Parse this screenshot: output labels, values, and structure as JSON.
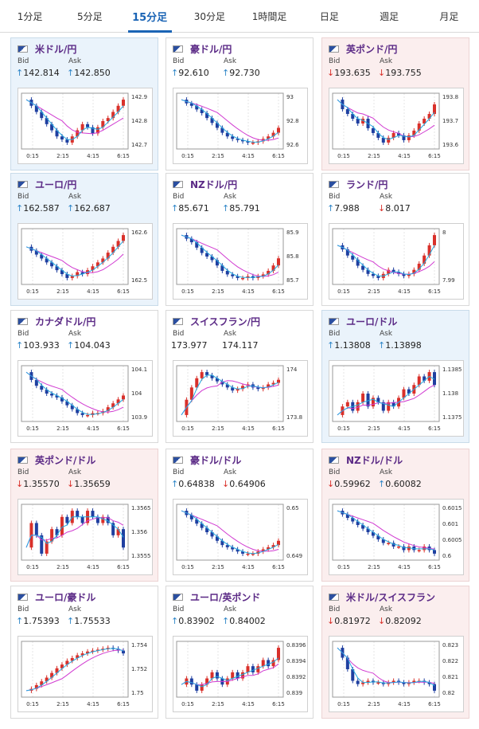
{
  "tabs": [
    "1分足",
    "5分足",
    "15分足",
    "30分足",
    "1時間足",
    "日足",
    "週足",
    "月足"
  ],
  "active_tab": 2,
  "labels": {
    "bid": "Bid",
    "ask": "Ask"
  },
  "colors": {
    "up_arrow": "#2f86c8",
    "down_arrow": "#d9302a",
    "title": "#5b2a86",
    "accent": "#1a64b5",
    "ma_line": "#d13bd1",
    "ma_line2": "#22a9e0"
  },
  "cards": [
    {
      "name": "米ドル/円",
      "flag": "us-jp-flag-icon",
      "bg": "up",
      "bid": {
        "dir": "up",
        "value": "142.814"
      },
      "ask": {
        "dir": "up",
        "value": "142.850"
      },
      "y_ticks": [
        "142.9",
        "142.8",
        "142.7"
      ],
      "x_ticks": [
        "0:15",
        "2:15",
        "4:15",
        "6:15"
      ],
      "series": [
        142.86,
        142.84,
        142.82,
        142.8,
        142.78,
        142.76,
        142.74,
        142.73,
        142.72,
        142.74,
        142.76,
        142.78,
        142.77,
        142.75,
        142.77,
        142.79,
        142.8,
        142.82,
        142.84,
        142.86
      ]
    },
    {
      "name": "豪ドル/円",
      "flag": "au-jp-flag-icon",
      "bg": "flat",
      "bid": {
        "dir": "up",
        "value": "92.610"
      },
      "ask": {
        "dir": "up",
        "value": "92.730"
      },
      "y_ticks": [
        "93",
        "92.8",
        "92.6"
      ],
      "x_ticks": [
        "0:15",
        "2:15",
        "4:15",
        "6:15"
      ],
      "series": [
        92.93,
        92.9,
        92.88,
        92.85,
        92.82,
        92.78,
        92.74,
        92.7,
        92.66,
        92.63,
        92.61,
        92.6,
        92.59,
        92.58,
        92.58,
        92.59,
        92.61,
        92.63,
        92.66,
        92.7
      ]
    },
    {
      "name": "英ポンド/円",
      "flag": "gb-jp-flag-icon",
      "bg": "down",
      "bid": {
        "dir": "down",
        "value": "193.635"
      },
      "ask": {
        "dir": "down",
        "value": "193.755"
      },
      "y_ticks": [
        "193.8",
        "193.7",
        "193.6"
      ],
      "x_ticks": [
        "0:15",
        "2:15",
        "4:15",
        "6:15"
      ],
      "series": [
        193.78,
        193.74,
        193.72,
        193.7,
        193.68,
        193.7,
        193.66,
        193.64,
        193.62,
        193.6,
        193.62,
        193.64,
        193.63,
        193.61,
        193.63,
        193.65,
        193.68,
        193.7,
        193.72,
        193.76
      ]
    },
    {
      "name": "ユーロ/円",
      "flag": "eu-jp-flag-icon",
      "bg": "up",
      "bid": {
        "dir": "up",
        "value": "162.587"
      },
      "ask": {
        "dir": "up",
        "value": "162.687"
      },
      "y_ticks": [
        "162.6",
        "162.5"
      ],
      "x_ticks": [
        "0:15",
        "2:15",
        "4:15",
        "6:15"
      ],
      "series": [
        162.6,
        162.58,
        162.56,
        162.54,
        162.52,
        162.5,
        162.48,
        162.46,
        162.44,
        162.45,
        162.47,
        162.46,
        162.48,
        162.5,
        162.52,
        162.54,
        162.57,
        162.6,
        162.63,
        162.66
      ]
    },
    {
      "name": "NZドル/円",
      "flag": "nz-jp-flag-icon",
      "bg": "flat",
      "bid": {
        "dir": "up",
        "value": "85.671"
      },
      "ask": {
        "dir": "up",
        "value": "85.791"
      },
      "y_ticks": [
        "85.9",
        "85.8",
        "85.7"
      ],
      "x_ticks": [
        "0:15",
        "2:15",
        "4:15",
        "6:15"
      ],
      "series": [
        85.9,
        85.88,
        85.86,
        85.83,
        85.8,
        85.78,
        85.76,
        85.73,
        85.7,
        85.68,
        85.67,
        85.66,
        85.66,
        85.67,
        85.66,
        85.67,
        85.68,
        85.7,
        85.73,
        85.77
      ]
    },
    {
      "name": "ランド/円",
      "flag": "za-jp-flag-icon",
      "bg": "flat",
      "bid": {
        "dir": "up",
        "value": "7.988"
      },
      "ask": {
        "dir": "down",
        "value": "8.017"
      },
      "y_ticks": [
        "8",
        "7.99"
      ],
      "x_ticks": [
        "0:15",
        "2:15",
        "4:15",
        "6:15"
      ],
      "series": [
        8.0,
        7.998,
        7.995,
        7.993,
        7.99,
        7.988,
        7.986,
        7.985,
        7.984,
        7.986,
        7.988,
        7.987,
        7.986,
        7.985,
        7.986,
        7.988,
        7.991,
        7.995,
        8.0,
        8.005
      ]
    },
    {
      "name": "カナダドル/円",
      "flag": "ca-jp-flag-icon",
      "bg": "flat",
      "bid": {
        "dir": "up",
        "value": "103.933"
      },
      "ask": {
        "dir": "up",
        "value": "104.043"
      },
      "y_ticks": [
        "104.1",
        "104",
        "103.9"
      ],
      "x_ticks": [
        "0:15",
        "2:15",
        "4:15",
        "6:15"
      ],
      "series": [
        104.12,
        104.08,
        104.05,
        104.03,
        104.01,
        104.0,
        103.99,
        103.97,
        103.95,
        103.93,
        103.91,
        103.9,
        103.9,
        103.91,
        103.91,
        103.92,
        103.94,
        103.96,
        103.98,
        104.0
      ]
    },
    {
      "name": "スイスフラン/円",
      "flag": "ch-jp-flag-icon",
      "bg": "flat",
      "bid": {
        "dir": "none",
        "value": "173.977"
      },
      "ask": {
        "dir": "none",
        "value": "174.117"
      },
      "y_ticks": [
        "174",
        "173.8"
      ],
      "x_ticks": [
        "0:15",
        "2:15",
        "4:15",
        "6:15"
      ],
      "series": [
        173.8,
        173.9,
        173.98,
        174.04,
        174.08,
        174.06,
        174.04,
        174.02,
        174.0,
        173.98,
        173.96,
        173.97,
        173.99,
        174.0,
        173.98,
        173.97,
        173.98,
        174.0,
        174.01,
        174.03
      ]
    },
    {
      "name": "ユーロ/ドル",
      "flag": "eu-us-flag-icon",
      "bg": "up",
      "bid": {
        "dir": "up",
        "value": "1.13808"
      },
      "ask": {
        "dir": "up",
        "value": "1.13898"
      },
      "y_ticks": [
        "1.1385",
        "1.138",
        "1.1375"
      ],
      "x_ticks": [
        "0:15",
        "2:15",
        "4:15",
        "6:15"
      ],
      "series": [
        1.1378,
        1.138,
        1.1381,
        1.1379,
        1.1381,
        1.1383,
        1.138,
        1.1382,
        1.1381,
        1.1379,
        1.1381,
        1.138,
        1.1382,
        1.1384,
        1.1383,
        1.1385,
        1.1387,
        1.1386,
        1.1388,
        1.1385
      ]
    },
    {
      "name": "英ポンド/ドル",
      "flag": "gb-us-flag-icon",
      "bg": "down",
      "bid": {
        "dir": "down",
        "value": "1.35570"
      },
      "ask": {
        "dir": "down",
        "value": "1.35659"
      },
      "y_ticks": [
        "1.3565",
        "1.356",
        "1.3555"
      ],
      "x_ticks": [
        "0:15",
        "2:15",
        "4:15",
        "6:15"
      ],
      "series": [
        1.3558,
        1.3562,
        1.356,
        1.3557,
        1.3559,
        1.3561,
        1.356,
        1.3563,
        1.3562,
        1.3564,
        1.3563,
        1.3562,
        1.3564,
        1.3563,
        1.3562,
        1.3563,
        1.3562,
        1.356,
        1.3561,
        1.3558
      ]
    },
    {
      "name": "豪ドル/ドル",
      "flag": "au-us-flag-icon",
      "bg": "flat",
      "bid": {
        "dir": "up",
        "value": "0.64838"
      },
      "ask": {
        "dir": "down",
        "value": "0.64906"
      },
      "y_ticks": [
        "0.65",
        "0.649"
      ],
      "x_ticks": [
        "0:15",
        "2:15",
        "4:15",
        "6:15"
      ],
      "series": [
        0.6503,
        0.6501,
        0.6499,
        0.6497,
        0.6495,
        0.6493,
        0.6491,
        0.6489,
        0.6487,
        0.6486,
        0.6485,
        0.6484,
        0.6483,
        0.6483,
        0.6483,
        0.6484,
        0.6485,
        0.6486,
        0.6487,
        0.6489
      ]
    },
    {
      "name": "NZドル/ドル",
      "flag": "nz-us-flag-icon",
      "bg": "down",
      "bid": {
        "dir": "down",
        "value": "0.59962"
      },
      "ask": {
        "dir": "up",
        "value": "0.60082"
      },
      "y_ticks": [
        "0.6015",
        "0.601",
        "0.6005",
        "0.6"
      ],
      "x_ticks": [
        "0:15",
        "2:15",
        "4:15",
        "6:15"
      ],
      "series": [
        0.6011,
        0.601,
        0.6009,
        0.6008,
        0.6007,
        0.6006,
        0.6005,
        0.6004,
        0.6003,
        0.6002,
        0.6002,
        0.6001,
        0.6001,
        0.6,
        0.6001,
        0.6,
        0.6,
        0.6001,
        0.6,
        0.5999
      ]
    },
    {
      "name": "ユーロ/豪ドル",
      "flag": "eu-au-flag-icon",
      "bg": "flat",
      "bid": {
        "dir": "up",
        "value": "1.75393"
      },
      "ask": {
        "dir": "up",
        "value": "1.75533"
      },
      "y_ticks": [
        "1.754",
        "1.752",
        "1.75"
      ],
      "x_ticks": [
        "0:15",
        "2:15",
        "4:15",
        "6:15"
      ],
      "series": [
        1.75,
        1.7502,
        1.7506,
        1.751,
        1.7514,
        1.7519,
        1.7524,
        1.7528,
        1.7532,
        1.7535,
        1.7538,
        1.754,
        1.7542,
        1.7543,
        1.7544,
        1.7545,
        1.7546,
        1.7545,
        1.7543,
        1.754
      ]
    },
    {
      "name": "ユーロ/英ポンド",
      "flag": "eu-gb-flag-icon",
      "bg": "flat",
      "bid": {
        "dir": "up",
        "value": "0.83902"
      },
      "ask": {
        "dir": "up",
        "value": "0.84002"
      },
      "y_ticks": [
        "0.8396",
        "0.8394",
        "0.8392",
        "0.839"
      ],
      "x_ticks": [
        "0:15",
        "2:15",
        "4:15",
        "6:15"
      ],
      "series": [
        0.8391,
        0.8392,
        0.8391,
        0.839,
        0.8391,
        0.8392,
        0.8393,
        0.8392,
        0.8391,
        0.8392,
        0.8393,
        0.8392,
        0.8393,
        0.8394,
        0.8393,
        0.8394,
        0.8395,
        0.8394,
        0.8395,
        0.8397
      ]
    },
    {
      "name": "米ドル/スイスフラン",
      "flag": "us-ch-flag-icon",
      "bg": "down",
      "bid": {
        "dir": "down",
        "value": "0.81972"
      },
      "ask": {
        "dir": "down",
        "value": "0.82092"
      },
      "y_ticks": [
        "0.823",
        "0.822",
        "0.821",
        "0.82"
      ],
      "x_ticks": [
        "0:15",
        "2:15",
        "4:15",
        "6:15"
      ],
      "series": [
        0.8225,
        0.8219,
        0.8212,
        0.8205,
        0.8203,
        0.8204,
        0.8205,
        0.8204,
        0.8204,
        0.8203,
        0.8204,
        0.8205,
        0.8204,
        0.8203,
        0.8204,
        0.8205,
        0.8205,
        0.8204,
        0.8203,
        0.8199
      ]
    }
  ]
}
